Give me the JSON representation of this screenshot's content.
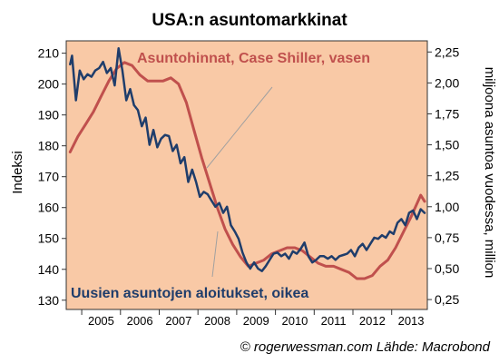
{
  "chart_data": {
    "type": "line",
    "title": "USA:n asuntomarkkinat",
    "ylabel_left": "Indeksi",
    "ylabel_right": "miljoona asuntoa vuodessa, million",
    "source": "© rogerwessman.com Lähde: Macrobond",
    "colors": {
      "background": "#f9c9a6",
      "price": "#c0504d",
      "starts": "#1f3d6b"
    },
    "grid": false,
    "x_range": [
      2004.6,
      2013.92
    ],
    "x_ticks": [
      2005,
      2006,
      2007,
      2008,
      2009,
      2010,
      2011,
      2012,
      2013
    ],
    "x_tick_labels": [
      "2005",
      "2006",
      "2007",
      "2008",
      "2009",
      "2010",
      "2011",
      "2012",
      "2013"
    ],
    "ylim_left": [
      127,
      214
    ],
    "yticks_left": [
      "130",
      "140",
      "150",
      "160",
      "170",
      "180",
      "190",
      "200",
      "210"
    ],
    "ylim_right": [
      0.17,
      2.34
    ],
    "yticks_right": [
      "0,25",
      "0,50",
      "0,75",
      "1,00",
      "1,25",
      "1,50",
      "1,75",
      "2,00",
      "2,25"
    ],
    "series": [
      {
        "name": "Asuntohinnat, Case Shiller, vasen",
        "axis": "left",
        "x": [
          2004.7,
          2004.9,
          2005.1,
          2005.3,
          2005.5,
          2005.7,
          2005.9,
          2006.1,
          2006.3,
          2006.5,
          2006.7,
          2006.9,
          2007.1,
          2007.3,
          2007.5,
          2007.7,
          2007.9,
          2008.1,
          2008.3,
          2008.5,
          2008.7,
          2008.9,
          2009.1,
          2009.3,
          2009.5,
          2009.7,
          2009.9,
          2010.1,
          2010.3,
          2010.5,
          2010.7,
          2010.9,
          2011.1,
          2011.3,
          2011.5,
          2011.7,
          2011.9,
          2012.1,
          2012.3,
          2012.5,
          2012.7,
          2012.9,
          2013.1,
          2013.3,
          2013.5,
          2013.75,
          2013.85
        ],
        "values": [
          178,
          183,
          187,
          191,
          196,
          201,
          205,
          207,
          206,
          203,
          201,
          201,
          201,
          202,
          200,
          194,
          185,
          176,
          168,
          160,
          153,
          148,
          144,
          141,
          142,
          143,
          145,
          146,
          147,
          147,
          146,
          144,
          142,
          141,
          141,
          140,
          139,
          137,
          137,
          138,
          141,
          143,
          147,
          152,
          157,
          164,
          162
        ]
      },
      {
        "name": "Uusien asuntojen aloitukset, oikea",
        "axis": "right",
        "x": [
          2004.7,
          2004.75,
          2004.85,
          2004.95,
          2005.05,
          2005.15,
          2005.25,
          2005.35,
          2005.45,
          2005.55,
          2005.65,
          2005.75,
          2005.85,
          2005.95,
          2006.05,
          2006.15,
          2006.25,
          2006.35,
          2006.45,
          2006.55,
          2006.65,
          2006.75,
          2006.85,
          2006.95,
          2007.05,
          2007.15,
          2007.25,
          2007.35,
          2007.45,
          2007.55,
          2007.65,
          2007.75,
          2007.85,
          2007.95,
          2008.05,
          2008.15,
          2008.25,
          2008.35,
          2008.45,
          2008.55,
          2008.65,
          2008.75,
          2008.85,
          2008.95,
          2009.05,
          2009.15,
          2009.25,
          2009.35,
          2009.45,
          2009.55,
          2009.65,
          2009.75,
          2009.85,
          2009.95,
          2010.05,
          2010.15,
          2010.25,
          2010.35,
          2010.45,
          2010.55,
          2010.65,
          2010.75,
          2010.85,
          2010.95,
          2011.05,
          2011.15,
          2011.25,
          2011.35,
          2011.45,
          2011.55,
          2011.65,
          2011.75,
          2011.85,
          2011.95,
          2012.05,
          2012.15,
          2012.25,
          2012.35,
          2012.45,
          2012.55,
          2012.65,
          2012.75,
          2012.85,
          2012.95,
          2013.05,
          2013.15,
          2013.25,
          2013.35,
          2013.45,
          2013.55,
          2013.65,
          2013.75,
          2013.85
        ],
        "values": [
          2.15,
          2.22,
          1.86,
          2.1,
          2.03,
          2.07,
          2.05,
          2.1,
          2.12,
          2.17,
          2.08,
          2.12,
          1.98,
          2.28,
          2.1,
          1.86,
          1.95,
          1.82,
          1.78,
          1.65,
          1.72,
          1.5,
          1.62,
          1.48,
          1.55,
          1.58,
          1.57,
          1.45,
          1.5,
          1.35,
          1.4,
          1.2,
          1.3,
          1.2,
          1.08,
          1.12,
          1.1,
          1.05,
          1.0,
          1.03,
          0.95,
          1.0,
          0.85,
          0.8,
          0.74,
          0.63,
          0.55,
          0.5,
          0.55,
          0.5,
          0.48,
          0.52,
          0.57,
          0.62,
          0.63,
          0.6,
          0.62,
          0.58,
          0.64,
          0.62,
          0.66,
          0.71,
          0.6,
          0.55,
          0.57,
          0.6,
          0.6,
          0.58,
          0.6,
          0.57,
          0.6,
          0.61,
          0.62,
          0.65,
          0.6,
          0.67,
          0.7,
          0.65,
          0.7,
          0.75,
          0.74,
          0.77,
          0.75,
          0.8,
          0.78,
          0.87,
          0.9,
          0.85,
          0.95,
          0.97,
          0.9,
          0.98,
          0.95
        ]
      }
    ]
  }
}
